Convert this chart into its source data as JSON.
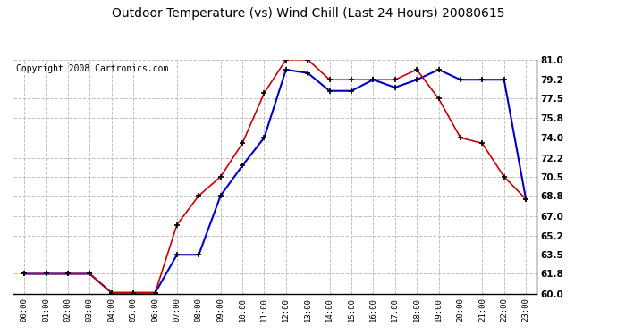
{
  "title": "Outdoor Temperature (vs) Wind Chill (Last 24 Hours) 20080615",
  "copyright": "Copyright 2008 Cartronics.com",
  "hours": [
    "00:00",
    "01:00",
    "02:00",
    "03:00",
    "04:00",
    "05:00",
    "06:00",
    "07:00",
    "08:00",
    "09:00",
    "10:00",
    "11:00",
    "12:00",
    "13:00",
    "14:00",
    "15:00",
    "16:00",
    "17:00",
    "18:00",
    "19:00",
    "20:00",
    "21:00",
    "22:00",
    "23:00"
  ],
  "temp": [
    61.8,
    61.8,
    61.8,
    61.8,
    60.1,
    60.1,
    60.1,
    66.2,
    68.8,
    70.5,
    73.5,
    78.0,
    81.0,
    81.0,
    79.2,
    79.2,
    79.2,
    79.2,
    80.1,
    77.5,
    74.0,
    73.5,
    70.5,
    68.5
  ],
  "wind_chill": [
    61.8,
    61.8,
    61.8,
    61.8,
    60.1,
    60.1,
    60.1,
    63.5,
    63.5,
    68.8,
    71.5,
    74.0,
    80.1,
    79.8,
    78.2,
    78.2,
    79.2,
    78.5,
    79.2,
    80.1,
    79.2,
    79.2,
    79.2,
    68.5
  ],
  "temp_color": "#cc0000",
  "wind_chill_color": "#0000cc",
  "background_color": "#ffffff",
  "plot_bg_color": "#ffffff",
  "grid_color": "#c0c0c0",
  "ylim": [
    60.0,
    81.0
  ],
  "yticks": [
    60.0,
    61.8,
    63.5,
    65.2,
    67.0,
    68.8,
    70.5,
    72.2,
    74.0,
    75.8,
    77.5,
    79.2,
    81.0
  ],
  "title_fontsize": 10,
  "copyright_fontsize": 7
}
